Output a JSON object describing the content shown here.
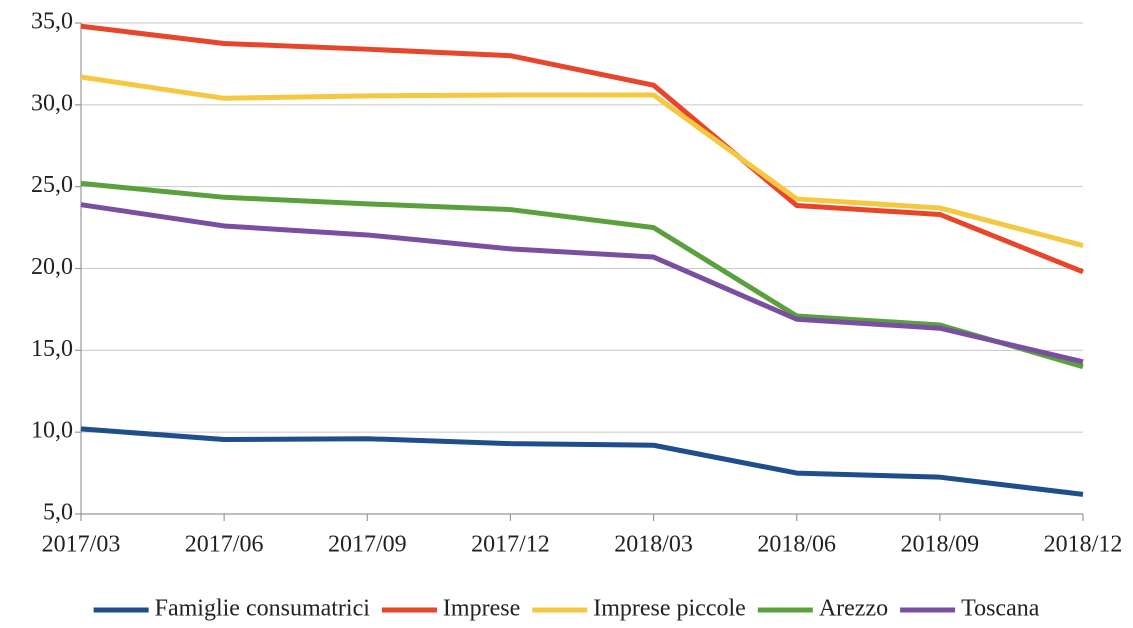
{
  "chart_data": {
    "type": "line",
    "categories": [
      "2017/03",
      "2017/06",
      "2017/09",
      "2017/12",
      "2018/03",
      "2018/06",
      "2018/09",
      "2018/12"
    ],
    "series": [
      {
        "name": "Famiglie consumatrici",
        "color": "#1f4e8c",
        "values": [
          10.2,
          9.55,
          9.6,
          9.3,
          9.2,
          7.5,
          7.25,
          6.2
        ]
      },
      {
        "name": "Imprese",
        "color": "#e8462a",
        "values": [
          34.8,
          33.75,
          33.4,
          33.0,
          31.2,
          23.85,
          23.3,
          19.8
        ]
      },
      {
        "name": "Imprese piccole",
        "color": "#f5c842",
        "values": [
          31.7,
          30.4,
          30.55,
          30.6,
          30.6,
          24.25,
          23.7,
          21.4
        ]
      },
      {
        "name": "Arezzo",
        "color": "#5aa03c",
        "values": [
          25.2,
          24.35,
          23.95,
          23.6,
          22.5,
          17.1,
          16.55,
          14.0
        ]
      },
      {
        "name": "Toscana",
        "color": "#7b4fa0",
        "values": [
          23.9,
          22.6,
          22.05,
          21.2,
          20.7,
          16.9,
          16.35,
          14.3
        ]
      }
    ],
    "ylim": [
      5,
      35
    ],
    "yticks": [
      {
        "value": 5,
        "label": "5,0"
      },
      {
        "value": 10,
        "label": "10,0"
      },
      {
        "value": 15,
        "label": "15,0"
      },
      {
        "value": 20,
        "label": "20,0"
      },
      {
        "value": 25,
        "label": "25,0"
      },
      {
        "value": 30,
        "label": "30,0"
      },
      {
        "value": 35,
        "label": "35,0"
      }
    ],
    "grid": true,
    "legend": "bottom"
  }
}
